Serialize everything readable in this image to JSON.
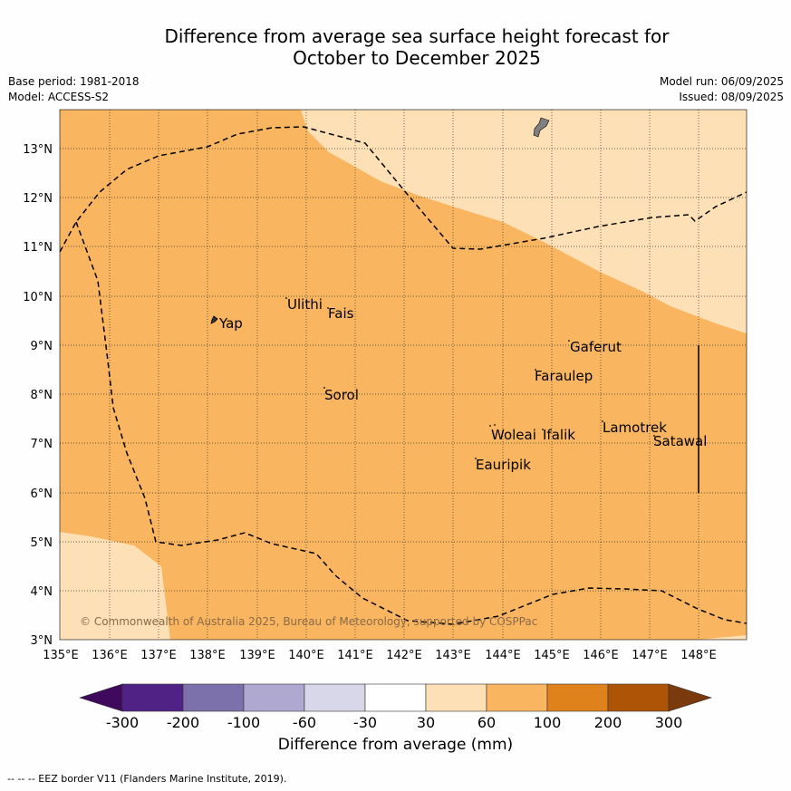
{
  "title_line1": "Difference from average sea surface height forecast for",
  "title_line2": "October to December 2025",
  "base_period": "Base period: 1981-2018",
  "model": "Model: ACCESS-S2",
  "model_run": "Model run: 06/09/2025",
  "issued": "Issued: 08/09/2025",
  "copyright": "© Commonwealth of Australia 2025, Bureau of Meteorology, supported by COSPPac",
  "footnote": "--  --  -- EEZ border V11 (Flanders Marine Institute, 2019).",
  "map": {
    "lon_ticks": [
      "135°E",
      "136°E",
      "137°E",
      "138°E",
      "139°E",
      "140°E",
      "141°E",
      "142°E",
      "143°E",
      "144°E",
      "145°E",
      "146°E",
      "147°E",
      "148°E"
    ],
    "lat_ticks": [
      "3°N",
      "4°N",
      "5°N",
      "6°N",
      "7°N",
      "8°N",
      "9°N",
      "10°N",
      "11°N",
      "12°N",
      "13°N"
    ],
    "lon_range": [
      135,
      149
    ],
    "lat_range": [
      3,
      13.8
    ],
    "colors": {
      "category_30_60": "#fde0b5",
      "category_60_100": "#f9b55f",
      "land": "#808080"
    },
    "places": [
      {
        "name": "Yap",
        "lon": 138.15,
        "lat": 9.5
      },
      {
        "name": "Ulithi",
        "lon": 139.6,
        "lat": 9.95
      },
      {
        "name": "Fais",
        "lon": 140.45,
        "lat": 9.75
      },
      {
        "name": "Gaferut",
        "lon": 145.3,
        "lat": 9.2
      },
      {
        "name": "Faraulep",
        "lon": 144.65,
        "lat": 8.6
      },
      {
        "name": "Sorol",
        "lon": 140.35,
        "lat": 8.15
      },
      {
        "name": "Woleai",
        "lon": 143.75,
        "lat": 7.35
      },
      {
        "name": "Ifalik",
        "lon": 144.85,
        "lat": 7.25
      },
      {
        "name": "Lamotrek",
        "lon": 146.05,
        "lat": 7.45
      },
      {
        "name": "Satawal",
        "lon": 147.05,
        "lat": 7.2
      },
      {
        "name": "Eauripik",
        "lon": 143.4,
        "lat": 6.7
      }
    ]
  },
  "colorbar": {
    "title": "Difference from average (mm)",
    "tick_labels": [
      "-300",
      "-200",
      "-100",
      "-60",
      "-30",
      "30",
      "60",
      "100",
      "200",
      "300"
    ],
    "colors": [
      "#3f0a5e",
      "#512286",
      "#7d71ab",
      "#afa8d1",
      "#d8d7e9",
      "#ffffff",
      "#fde0b5",
      "#f9b55f",
      "#e0821b",
      "#ad5407",
      "#7b3a0c"
    ]
  }
}
